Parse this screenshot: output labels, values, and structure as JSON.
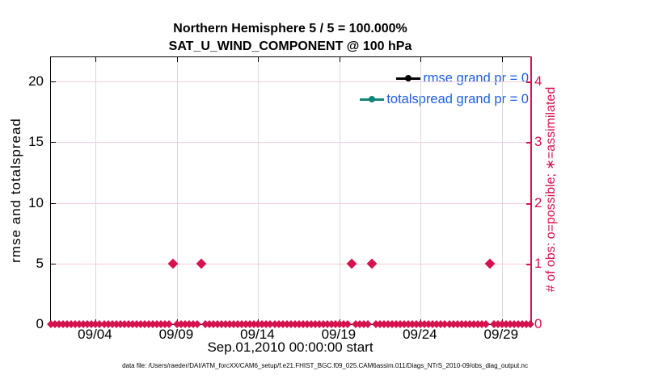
{
  "figure": {
    "title_line1": "Northern Hemisphere 5 / 5 = 100.000%",
    "title_line2": "SAT_U_WIND_COMPONENT @ 100 hPa",
    "xlabel": "Sep.01,2010 00:00:00 start",
    "footer": "data file: /Users/raeder/DAI/ATM_forcXX/CAM6_setup/f.e21.FHIST_BGC.f09_025.CAM6assim.011/Diags_NTrS_2010-09/obs_diag_output.nc"
  },
  "legend": {
    "text_color": "#1b5fe8",
    "items": [
      {
        "label": "rmse grand pr = 0",
        "color": "#000000",
        "marker": "circle"
      },
      {
        "label": "totalspread grand pr = 0",
        "color": "#0e8577",
        "marker": "circle"
      }
    ]
  },
  "colors": {
    "axis_black": "#000000",
    "obs_crimson": "#d5114e",
    "pink_gridline": "#f6ccd8",
    "gray_gridline": "#d9d9d9",
    "teal": "#0e8577",
    "legend_text_blue": "#1b5fe8"
  },
  "chart_data": {
    "type": "scatter",
    "title": "Northern Hemisphere 5 / 5 = 100.000% | SAT_U_WIND_COMPONENT @ 100 hPa",
    "xlabel": "Sep.01,2010 00:00:00 start",
    "grid": true,
    "legend_position": "top-right-inside",
    "x_axis": {
      "tick_labels": [
        "09/04",
        "09/09",
        "09/14",
        "09/19",
        "09/24",
        "09/29"
      ],
      "tick_days_from_start": [
        3,
        8,
        13,
        18,
        23,
        28
      ],
      "window_days_from_start": [
        0.24,
        29.8
      ],
      "start_datetime": "Sep.01,2010 00:00:00"
    },
    "left_axis": {
      "label": "rmse and totalspread",
      "ticks": [
        0,
        5,
        10,
        15,
        20
      ],
      "range": [
        0,
        22
      ],
      "color": "#000000"
    },
    "right_axis": {
      "label": "# of obs: o=possible; ∗=assimilated",
      "ticks": [
        0,
        1,
        2,
        3,
        4
      ],
      "range": [
        0,
        4.4
      ],
      "color": "#d5114e"
    },
    "series": [
      {
        "name": "rmse grand pr = 0",
        "axis": "left",
        "color": "#000000",
        "values": []
      },
      {
        "name": "totalspread grand pr = 0",
        "axis": "left",
        "color": "#0e8577",
        "values": []
      },
      {
        "name": "# of obs (possible and assimilated)",
        "axis": "right",
        "color": "#d5114e",
        "marker": "diamond",
        "bin_start_day": 0.25,
        "bin_step_day": 0.25,
        "counts": [
          0,
          0,
          0,
          0,
          0,
          0,
          0,
          0,
          0,
          0,
          0,
          0,
          0,
          0,
          0,
          0,
          0,
          0,
          0,
          0,
          0,
          0,
          0,
          0,
          0,
          0,
          0,
          0,
          0,
          0,
          1,
          0,
          0,
          0,
          0,
          0,
          0,
          1,
          0,
          0,
          0,
          0,
          0,
          0,
          0,
          0,
          0,
          0,
          0,
          0,
          0,
          0,
          0,
          0,
          0,
          0,
          0,
          0,
          0,
          0,
          0,
          0,
          0,
          0,
          0,
          0,
          0,
          0,
          0,
          0,
          0,
          0,
          0,
          0,
          1,
          0,
          0,
          0,
          0,
          1,
          0,
          0,
          0,
          0,
          0,
          0,
          0,
          0,
          0,
          0,
          0,
          0,
          0,
          0,
          0,
          0,
          0,
          0,
          0,
          0,
          0,
          0,
          0,
          0,
          0,
          0,
          0,
          0,
          1,
          0,
          0,
          0,
          0,
          0,
          0,
          0,
          0,
          0,
          0
        ],
        "bins_with_one_obs_approx_times": [
          "09/08 18:00",
          "09/10 12:00",
          "09/19 18:00",
          "09/21 00:00",
          "09/28 06:00"
        ]
      }
    ]
  }
}
